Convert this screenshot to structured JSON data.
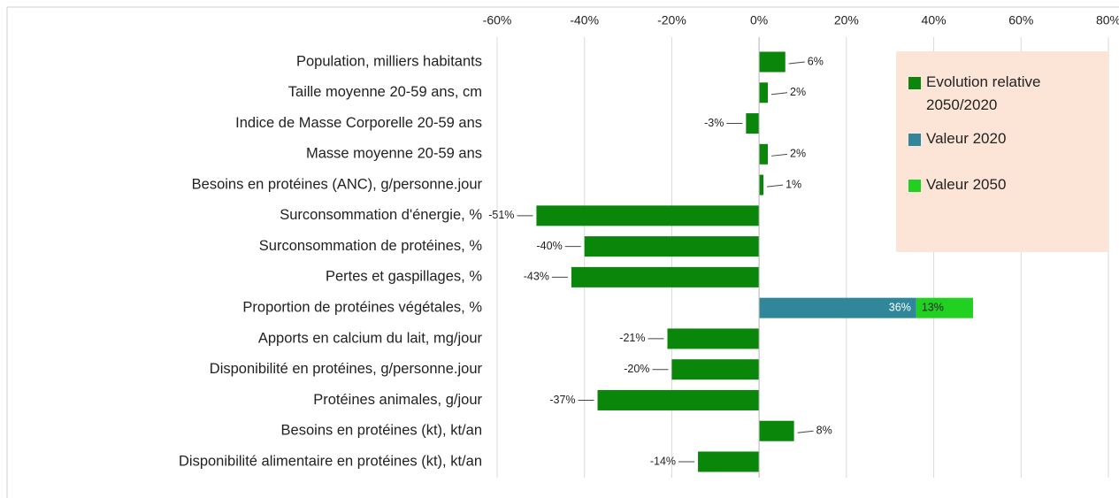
{
  "chart_data": {
    "type": "bar",
    "orientation": "horizontal",
    "stacked": true,
    "categories": [
      "Population, milliers habitants",
      "Taille moyenne 20-59 ans, cm",
      "Indice de Masse Corporelle 20-59 ans",
      "Masse moyenne 20-59 ans",
      "Besoins en protéines (ANC), g/personne.jour",
      "Surconsommation d'énergie, %",
      "Surconsommation de protéines, %",
      "Pertes et gaspillages, %",
      "Proportion de protéines végétales, %",
      "Apports en calcium du lait, mg/jour",
      "Disponibilité en protéines, g/personne.jour",
      "Protéines animales, g/jour",
      "Besoins en protéines (kt), kt/an",
      "Disponibilité alimentaire en protéines (kt), kt/an"
    ],
    "series": [
      {
        "name": "Evolution relative 2050/2020",
        "color": "#0a870a",
        "values": [
          6,
          2,
          -3,
          2,
          1,
          -51,
          -40,
          -43,
          null,
          -21,
          -20,
          -37,
          8,
          -14
        ],
        "value_labels": [
          "6%",
          "2%",
          "-3%",
          "2%",
          "1%",
          "-51%",
          "-40%",
          "-43%",
          null,
          "-21%",
          "-20%",
          "-37%",
          "8%",
          "-14%"
        ]
      },
      {
        "name": "Valeur 2020",
        "color": "#31879a",
        "values": [
          null,
          null,
          null,
          null,
          null,
          null,
          null,
          null,
          36,
          null,
          null,
          null,
          null,
          null
        ],
        "value_labels": [
          null,
          null,
          null,
          null,
          null,
          null,
          null,
          null,
          "36%",
          null,
          null,
          null,
          null,
          null
        ]
      },
      {
        "name": "Valeur 2050",
        "color": "#22d022",
        "values": [
          null,
          null,
          null,
          null,
          null,
          null,
          null,
          null,
          13,
          null,
          null,
          null,
          null,
          null
        ],
        "value_labels": [
          null,
          null,
          null,
          null,
          null,
          null,
          null,
          null,
          "13%",
          null,
          null,
          null,
          null,
          null
        ]
      }
    ],
    "xlim": [
      -60,
      80
    ],
    "xticks": [
      {
        "value": -60,
        "label": "-60%"
      },
      {
        "value": -40,
        "label": "-40%"
      },
      {
        "value": -20,
        "label": "-20%"
      },
      {
        "value": 0,
        "label": "0%"
      },
      {
        "value": 20,
        "label": "20%"
      },
      {
        "value": 40,
        "label": "40%"
      },
      {
        "value": 60,
        "label": "60%"
      },
      {
        "value": 80,
        "label": "80%"
      }
    ],
    "grid": true,
    "legend_position": "right"
  }
}
